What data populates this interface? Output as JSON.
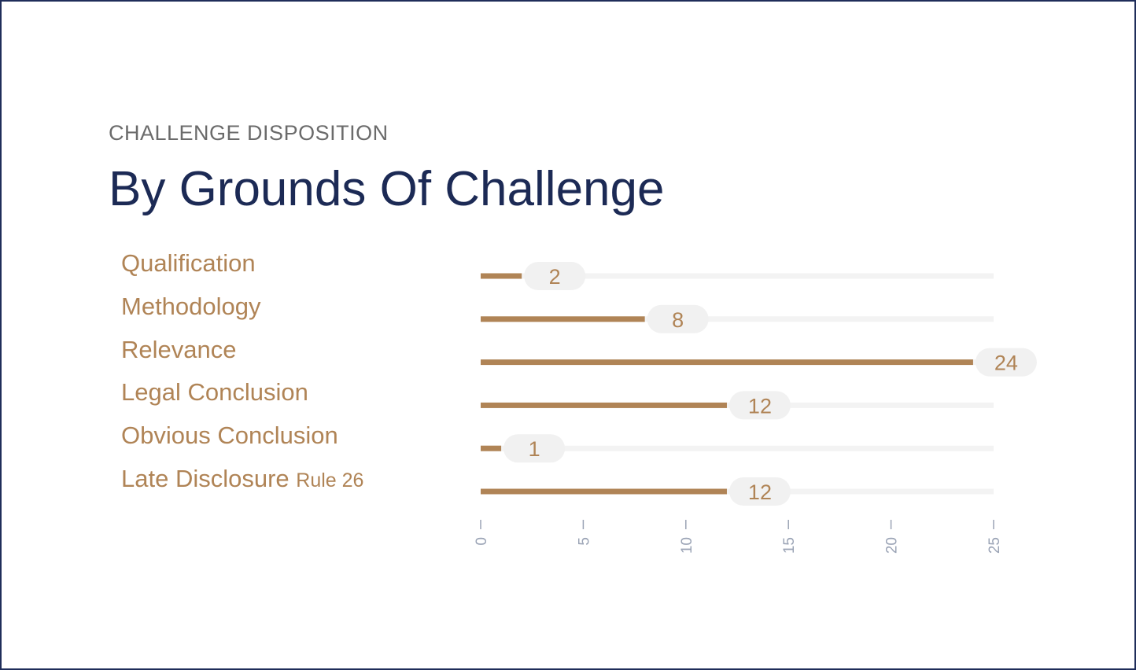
{
  "header": {
    "eyebrow": "CHALLENGE DISPOSITION",
    "title": "By Grounds Of Challenge"
  },
  "colors": {
    "bar": "#b08456",
    "track": "#f3f3f3",
    "pill": "#f1f1f1",
    "tick": "#9aa3b5",
    "title": "#1c2a55",
    "frame": "#1f2d5a"
  },
  "chart_data": {
    "type": "bar",
    "orientation": "horizontal",
    "categories": [
      "Qualification",
      "Methodology",
      "Relevance",
      "Legal Conclusion",
      "Obvious Conclusion",
      "Late Disclosure"
    ],
    "category_notes": [
      "",
      "",
      "",
      "",
      "",
      "Rule 26"
    ],
    "values": [
      2,
      8,
      24,
      12,
      1,
      12
    ],
    "value_labels": [
      "2",
      "8",
      "24",
      "12",
      "1",
      "12"
    ],
    "xlim": [
      0,
      25
    ],
    "xticks": [
      0,
      5,
      10,
      15,
      20,
      25
    ],
    "xtick_labels": [
      "0",
      "5",
      "10",
      "15",
      "20",
      "25"
    ],
    "title": "By Grounds Of Challenge",
    "xlabel": "",
    "ylabel": "",
    "grid": false,
    "legend": "none"
  }
}
